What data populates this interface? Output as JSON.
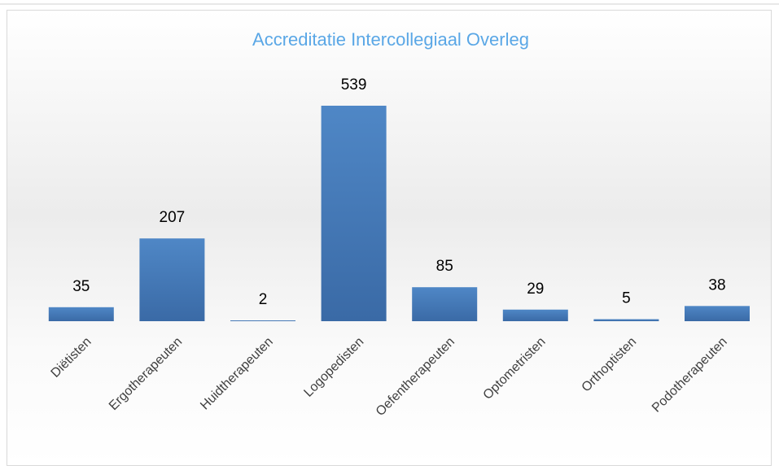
{
  "chart_data": {
    "type": "bar",
    "title": "Accreditatie Intercollegiaal Overleg",
    "categories": [
      "Diëtisten",
      "Ergotherapeuten",
      "Huidtherapeuten",
      "Logopedisten",
      "Oefentherapeuten",
      "Optometristen",
      "Orthoptisten",
      "Podotherapeuten"
    ],
    "values": [
      35,
      207,
      2,
      539,
      85,
      29,
      5,
      38
    ],
    "color": "#4a7ebb"
  }
}
